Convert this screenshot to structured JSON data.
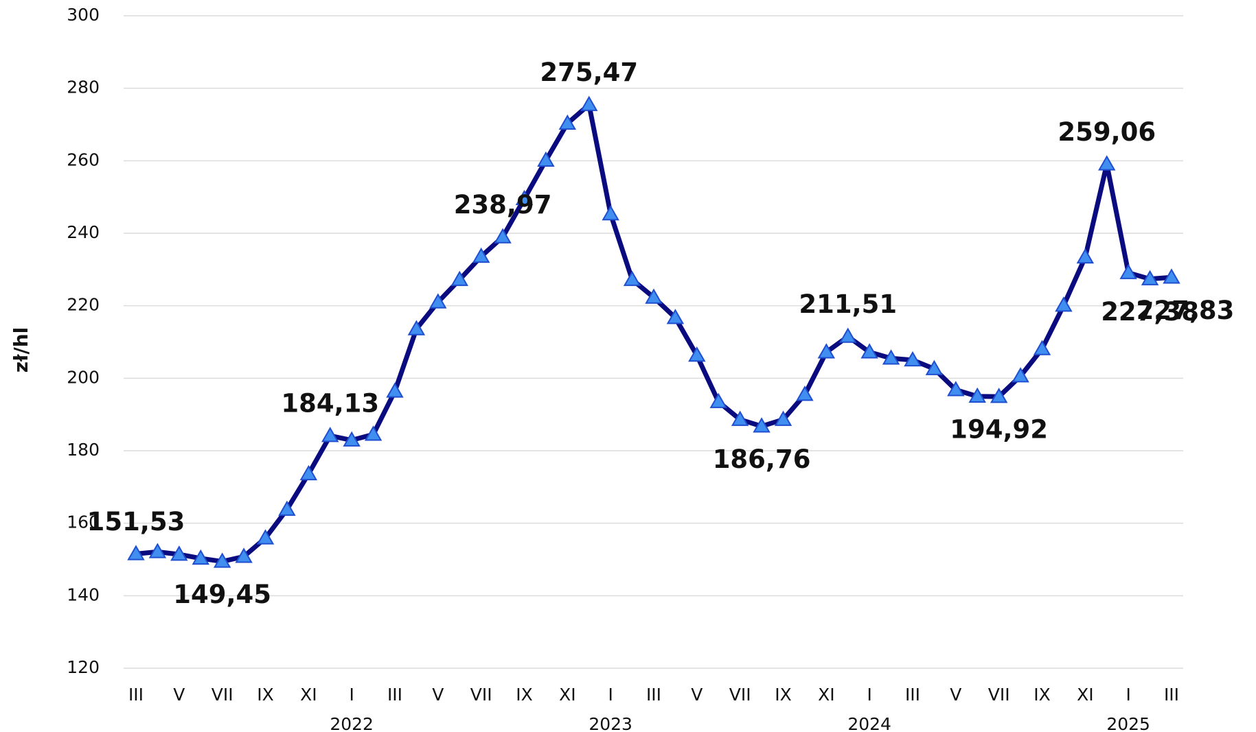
{
  "chart_data": {
    "type": "line",
    "y_label": "zł/hl",
    "categories": [
      "III",
      null,
      "V",
      null,
      "VII",
      null,
      "IX",
      null,
      "XI",
      null,
      "I",
      null,
      "III",
      null,
      "V",
      null,
      "VII",
      null,
      "IX",
      null,
      "XI",
      null,
      "I",
      null,
      "III",
      null,
      "V",
      null,
      "VII",
      null,
      "IX",
      null,
      "XI",
      null,
      "I",
      null,
      "III",
      null,
      "V",
      null,
      "VII",
      null,
      "IX",
      null,
      "XI",
      null,
      "I",
      null,
      "III"
    ],
    "category_years": [
      null,
      null,
      null,
      null,
      null,
      null,
      null,
      null,
      null,
      null,
      "2022",
      null,
      null,
      null,
      null,
      null,
      null,
      null,
      null,
      null,
      null,
      null,
      "2023",
      null,
      null,
      null,
      null,
      null,
      null,
      null,
      null,
      null,
      null,
      null,
      "2024",
      null,
      null,
      null,
      null,
      null,
      null,
      null,
      null,
      null,
      null,
      null,
      "2025",
      null,
      null
    ],
    "values": [
      151.53,
      152.1,
      151.4,
      150.3,
      149.45,
      150.8,
      155.9,
      163.8,
      173.6,
      184.13,
      182.9,
      184.5,
      196.4,
      213.6,
      221.0,
      227.2,
      233.6,
      238.97,
      249.5,
      260.1,
      270.3,
      275.47,
      245.3,
      227.2,
      222.3,
      216.7,
      206.3,
      193.5,
      188.6,
      186.76,
      188.6,
      195.5,
      207.2,
      211.51,
      207.2,
      205.5,
      205.0,
      202.6,
      196.8,
      195.0,
      194.92,
      200.6,
      208.1,
      220.1,
      233.4,
      259.06,
      229.1,
      227.38,
      227.83
    ],
    "value_labels": [
      "151,53",
      null,
      null,
      null,
      "149,45",
      null,
      null,
      null,
      null,
      "184,13",
      null,
      null,
      null,
      null,
      null,
      null,
      null,
      "238,97",
      null,
      null,
      null,
      "275,47",
      null,
      null,
      null,
      null,
      null,
      null,
      null,
      "186,76",
      null,
      null,
      null,
      "211,51",
      null,
      null,
      null,
      null,
      null,
      null,
      "194,92",
      null,
      null,
      null,
      null,
      "259,06",
      null,
      "227,38",
      "227,83"
    ],
    "color": "#0b0b80",
    "marker_color": "#3f8ef0",
    "ylim": [
      120,
      300
    ],
    "yticks": [
      120,
      140,
      160,
      180,
      200,
      220,
      240,
      260,
      280,
      300
    ],
    "grid": true
  }
}
